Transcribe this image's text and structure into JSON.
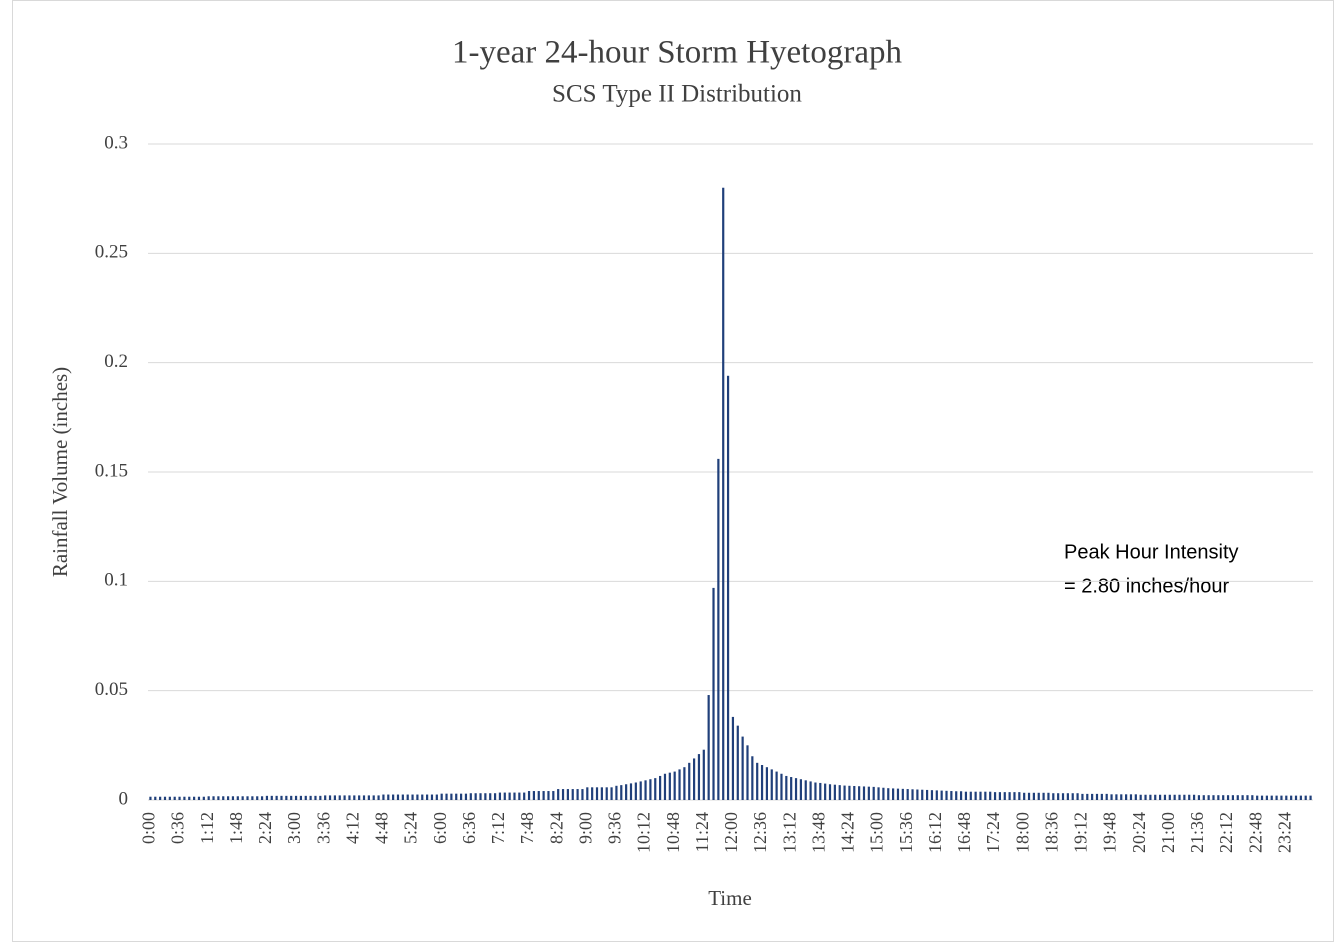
{
  "chart_data": {
    "type": "bar",
    "title": "1-year 24-hour Storm Hyetograph",
    "subtitle": "SCS Type II Distribution",
    "xlabel": "Time",
    "ylabel": "Rainfall Volume (inches)",
    "annotations": [
      "Peak Hour Intensity",
      "=  2.80 inches/hour"
    ],
    "color": "#203f7a",
    "grid": true,
    "ylim": [
      0,
      0.3
    ],
    "yticks": [
      0,
      0.05,
      0.1,
      0.15,
      0.2,
      0.25,
      0.3
    ],
    "categories": [
      "0:00",
      null,
      null,
      null,
      null,
      null,
      "0:36",
      null,
      null,
      null,
      null,
      null,
      "1:12",
      null,
      null,
      null,
      null,
      null,
      "1:48",
      null,
      null,
      null,
      null,
      null,
      "2:24",
      null,
      null,
      null,
      null,
      null,
      "3:00",
      null,
      null,
      null,
      null,
      null,
      "3:36",
      null,
      null,
      null,
      null,
      null,
      "4:12",
      null,
      null,
      null,
      null,
      null,
      "4:48",
      null,
      null,
      null,
      null,
      null,
      "5:24",
      null,
      null,
      null,
      null,
      null,
      "6:00",
      null,
      null,
      null,
      null,
      null,
      "6:36",
      null,
      null,
      null,
      null,
      null,
      "7:12",
      null,
      null,
      null,
      null,
      null,
      "7:48",
      null,
      null,
      null,
      null,
      null,
      "8:24",
      null,
      null,
      null,
      null,
      null,
      "9:00",
      null,
      null,
      null,
      null,
      null,
      "9:36",
      null,
      null,
      null,
      null,
      null,
      "10:12",
      null,
      null,
      null,
      null,
      null,
      "10:48",
      null,
      null,
      null,
      null,
      null,
      "11:24",
      null,
      null,
      null,
      null,
      null,
      "12:00",
      null,
      null,
      null,
      null,
      null,
      "12:36",
      null,
      null,
      null,
      null,
      null,
      "13:12",
      null,
      null,
      null,
      null,
      null,
      "13:48",
      null,
      null,
      null,
      null,
      null,
      "14:24",
      null,
      null,
      null,
      null,
      null,
      "15:00",
      null,
      null,
      null,
      null,
      null,
      "15:36",
      null,
      null,
      null,
      null,
      null,
      "16:12",
      null,
      null,
      null,
      null,
      null,
      "16:48",
      null,
      null,
      null,
      null,
      null,
      "17:24",
      null,
      null,
      null,
      null,
      null,
      "18:00",
      null,
      null,
      null,
      null,
      null,
      "18:36",
      null,
      null,
      null,
      null,
      null,
      "19:12",
      null,
      null,
      null,
      null,
      null,
      "19:48",
      null,
      null,
      null,
      null,
      null,
      "20:24",
      null,
      null,
      null,
      null,
      null,
      "21:00",
      null,
      null,
      null,
      null,
      null,
      "21:36",
      null,
      null,
      null,
      null,
      null,
      "22:12",
      null,
      null,
      null,
      null,
      null,
      "22:48",
      null,
      null,
      null,
      null,
      null,
      "23:24",
      null,
      null,
      null,
      null,
      null
    ],
    "values": [
      0.0015,
      0.0015,
      0.0015,
      0.0015,
      0.0015,
      0.0015,
      0.0015,
      0.0015,
      0.0015,
      0.0015,
      0.0015,
      0.0015,
      0.0017,
      0.0017,
      0.0017,
      0.0017,
      0.0017,
      0.0017,
      0.0017,
      0.0017,
      0.0017,
      0.0017,
      0.0017,
      0.0017,
      0.0019,
      0.0019,
      0.0019,
      0.0019,
      0.0019,
      0.0019,
      0.0019,
      0.0019,
      0.0019,
      0.0019,
      0.0019,
      0.0019,
      0.0021,
      0.0021,
      0.0021,
      0.0021,
      0.0021,
      0.0021,
      0.0021,
      0.0021,
      0.0021,
      0.0021,
      0.0021,
      0.0021,
      0.0025,
      0.0025,
      0.0025,
      0.0025,
      0.0025,
      0.0025,
      0.0025,
      0.0025,
      0.0025,
      0.0025,
      0.0025,
      0.0025,
      0.0029,
      0.0029,
      0.0029,
      0.0029,
      0.0029,
      0.0029,
      0.0031,
      0.0031,
      0.0031,
      0.0031,
      0.0031,
      0.0031,
      0.0034,
      0.0034,
      0.0034,
      0.0034,
      0.0034,
      0.0034,
      0.0041,
      0.0041,
      0.0041,
      0.0041,
      0.0041,
      0.0041,
      0.005,
      0.005,
      0.005,
      0.005,
      0.005,
      0.005,
      0.0058,
      0.0058,
      0.0058,
      0.0058,
      0.0058,
      0.0058,
      0.0065,
      0.0068,
      0.0072,
      0.0076,
      0.008,
      0.0085,
      0.009,
      0.0095,
      0.01,
      0.011,
      0.012,
      0.0125,
      0.013,
      0.014,
      0.015,
      0.017,
      0.019,
      0.021,
      0.023,
      0.048,
      0.097,
      0.156,
      0.28,
      0.194,
      0.038,
      0.034,
      0.029,
      0.025,
      0.02,
      0.017,
      0.016,
      0.015,
      0.014,
      0.013,
      0.012,
      0.011,
      0.0105,
      0.01,
      0.0095,
      0.009,
      0.0085,
      0.008,
      0.0078,
      0.0075,
      0.0072,
      0.007,
      0.0068,
      0.0066,
      0.0065,
      0.0064,
      0.0063,
      0.0062,
      0.0061,
      0.006,
      0.0058,
      0.0056,
      0.0054,
      0.0053,
      0.0052,
      0.0051,
      0.005,
      0.0049,
      0.0048,
      0.0047,
      0.0046,
      0.0045,
      0.0044,
      0.0043,
      0.0042,
      0.0041,
      0.004,
      0.004,
      0.0038,
      0.0038,
      0.0038,
      0.0038,
      0.0038,
      0.0038,
      0.0036,
      0.0036,
      0.0036,
      0.0036,
      0.0036,
      0.0036,
      0.0033,
      0.0033,
      0.0033,
      0.0033,
      0.0033,
      0.0033,
      0.0031,
      0.0031,
      0.0031,
      0.0031,
      0.0031,
      0.0031,
      0.0028,
      0.0028,
      0.0028,
      0.0028,
      0.0028,
      0.0028,
      0.0026,
      0.0026,
      0.0026,
      0.0026,
      0.0026,
      0.0026,
      0.0024,
      0.0024,
      0.0024,
      0.0024,
      0.0024,
      0.0024,
      0.0024,
      0.0024,
      0.0024,
      0.0024,
      0.0024,
      0.0024,
      0.0022,
      0.0022,
      0.0022,
      0.0022,
      0.0022,
      0.0022,
      0.0022,
      0.0022,
      0.0022,
      0.0022,
      0.0022,
      0.0022,
      0.002,
      0.002,
      0.002,
      0.002,
      0.002,
      0.002,
      0.002,
      0.002,
      0.002,
      0.002,
      0.002,
      0.002
    ]
  }
}
